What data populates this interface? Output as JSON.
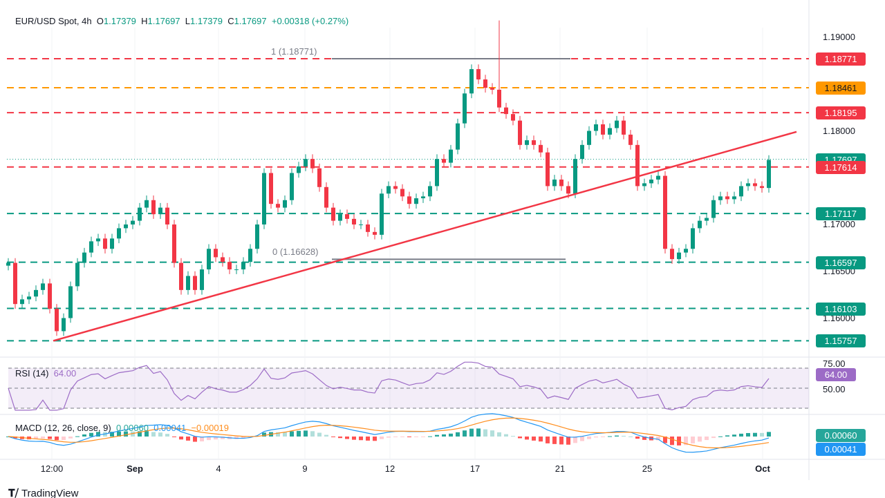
{
  "header": {
    "symbol": "EUR/USD Spot, 4h",
    "o_label": "O",
    "o": "1.17379",
    "h_label": "H",
    "h": "1.17697",
    "l_label": "L",
    "l": "1.17379",
    "c_label": "C",
    "c": "1.17697",
    "change": "+0.00318 (+0.27%)"
  },
  "colors": {
    "up": "#089981",
    "down": "#f23645",
    "resistance": "#f23645",
    "key_level": "#ff9800",
    "support": "#089981",
    "trendline": "#f23645",
    "rsi": "#9c6bc6",
    "macd": "#2196f3",
    "signal": "#ff8c1a"
  },
  "price_axis": [
    "1.19000",
    "1.18000",
    "1.17000",
    "1.16500",
    "1.16000"
  ],
  "price_tags": [
    {
      "label": "1.18771",
      "value": 1.18771,
      "color": "#f23645",
      "style": "dashed"
    },
    {
      "label": "1.18461",
      "value": 1.18461,
      "color": "#ff9800",
      "style": "dashed"
    },
    {
      "label": "1.18195",
      "value": 1.18195,
      "color": "#f23645",
      "style": "dashed"
    },
    {
      "label": "1.17697",
      "value": 1.17697,
      "color": "#089981",
      "style": "dotted"
    },
    {
      "label": "1.17614",
      "value": 1.17614,
      "color": "#f23645",
      "style": "dashed"
    },
    {
      "label": "1.17117",
      "value": 1.17117,
      "color": "#089981",
      "style": "dashed"
    },
    {
      "label": "1.16597",
      "value": 1.16597,
      "color": "#089981",
      "style": "dashed"
    },
    {
      "label": "1.16103",
      "value": 1.16103,
      "color": "#089981",
      "style": "dashed"
    },
    {
      "label": "1.15757",
      "value": 1.15757,
      "color": "#089981",
      "style": "dashed"
    }
  ],
  "fib": {
    "top_label": "1 (1.18771)",
    "top": 1.18771,
    "bottom_label": "0 (1.16628)",
    "bottom": 1.16628
  },
  "time_axis": [
    {
      "label": "12:00",
      "bold": false
    },
    {
      "label": "Sep",
      "bold": true
    },
    {
      "label": "4",
      "bold": false
    },
    {
      "label": "9",
      "bold": false
    },
    {
      "label": "12",
      "bold": false
    },
    {
      "label": "17",
      "bold": false
    },
    {
      "label": "21",
      "bold": false
    },
    {
      "label": "25",
      "bold": false
    },
    {
      "label": "Oct",
      "bold": true
    }
  ],
  "rsi": {
    "title": "RSI (14)",
    "value": "64.00",
    "levels": [
      "75.00",
      "50.00"
    ]
  },
  "macd": {
    "title": "MACD (12, 26, close, 9)",
    "hist": "0.00060",
    "macd": "0.00041",
    "signal": "−0.00019",
    "tag_hist": "0.00060",
    "tag_macd": "0.00041"
  },
  "branding": "TradingView",
  "chart_data": {
    "type": "candlestick",
    "title": "EUR/USD Spot, 4h",
    "ylim": [
      1.1565,
      1.192
    ],
    "closes": [
      1.1659,
      1.1615,
      1.162,
      1.1623,
      1.163,
      1.1637,
      1.161,
      1.1586,
      1.16,
      1.1634,
      1.1659,
      1.167,
      1.1682,
      1.1685,
      1.1674,
      1.1685,
      1.1696,
      1.17,
      1.1704,
      1.1718,
      1.1726,
      1.1711,
      1.1718,
      1.17,
      1.1659,
      1.163,
      1.1645,
      1.163,
      1.1652,
      1.1674,
      1.1665,
      1.166,
      1.1652,
      1.1652,
      1.166,
      1.1674,
      1.17,
      1.1755,
      1.1722,
      1.1718,
      1.1726,
      1.1755,
      1.1762,
      1.177,
      1.176,
      1.174,
      1.1718,
      1.1704,
      1.1711,
      1.1706,
      1.17,
      1.17,
      1.1692,
      1.1689,
      1.1733,
      1.1741,
      1.1738,
      1.173,
      1.1722,
      1.1728,
      1.173,
      1.1741,
      1.177,
      1.1766,
      1.178,
      1.1808,
      1.184,
      1.1866,
      1.1855,
      1.1846,
      1.1844,
      1.1825,
      1.1818,
      1.1811,
      1.1785,
      1.179,
      1.1785,
      1.1777,
      1.1741,
      1.1748,
      1.1741,
      1.1733,
      1.177,
      1.1785,
      1.18,
      1.1807,
      1.1796,
      1.1803,
      1.1811,
      1.1796,
      1.1785,
      1.1741,
      1.1744,
      1.1748,
      1.1752,
      1.1674,
      1.1663,
      1.167,
      1.1674,
      1.1696,
      1.1704,
      1.1707,
      1.1726,
      1.173,
      1.1727,
      1.173,
      1.1741,
      1.1744,
      1.1741,
      1.1739,
      1.1769
    ],
    "spike": {
      "index": 71,
      "high": 1.1918
    },
    "trendline": [
      {
        "index": 6.5,
        "price": 1.15757
      },
      {
        "index": 114,
        "price": 1.1799
      }
    ]
  }
}
